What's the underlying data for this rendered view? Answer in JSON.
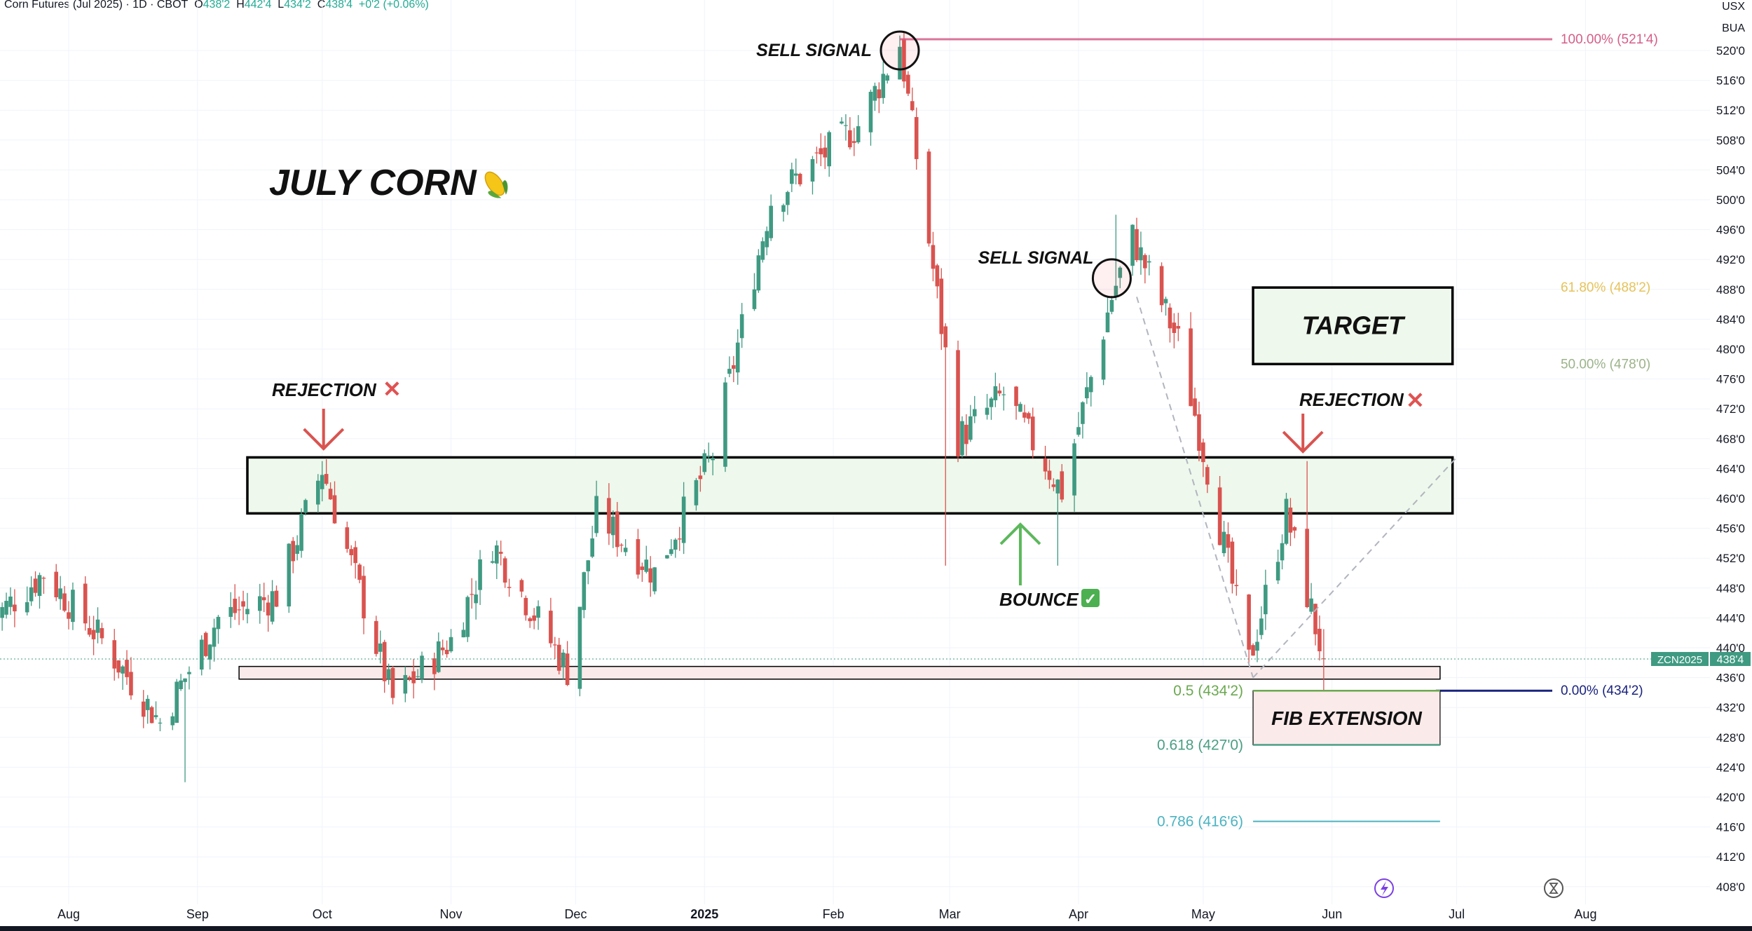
{
  "header": {
    "symbol": "Corn Futures (Jul 2025) · 1D · CBOT",
    "open_label": "O",
    "open": "438'2",
    "high_label": "H",
    "high": "442'4",
    "low_label": "L",
    "low": "434'2",
    "close_label": "C",
    "close": "438'4",
    "change": "+0'2 (+0.06%)"
  },
  "currency_labels": [
    "USX",
    "BUA"
  ],
  "price_tag": {
    "symbol": "ZCN2025",
    "price": "438'4",
    "value": 438.5
  },
  "colors": {
    "up": "#3f9a82",
    "down": "#d9534f",
    "box_fill": "#eef8ec",
    "pink_fill": "#fbeaea",
    "fib_100": "#d45e88",
    "fib_618": "#e6c35a",
    "fib_50": "#9cb38a",
    "fib_0": "#1a237e",
    "fib_ext_0786": "#4bb3c2",
    "fib_ext_05": "#6aa84f",
    "fib_ext_0618": "#4a9e84"
  },
  "chart_data": {
    "type": "candlestick",
    "x_axis_labels": [
      {
        "label": "Aug",
        "date": "2024-08-01"
      },
      {
        "label": "Sep",
        "date": "2024-09-01"
      },
      {
        "label": "Oct",
        "date": "2024-10-01"
      },
      {
        "label": "Nov",
        "date": "2024-11-01"
      },
      {
        "label": "Dec",
        "date": "2024-12-01"
      },
      {
        "label": "2025",
        "date": "2025-01-01"
      },
      {
        "label": "Feb",
        "date": "2025-02-01"
      },
      {
        "label": "Mar",
        "date": "2025-03-01"
      },
      {
        "label": "Apr",
        "date": "2025-04-01"
      },
      {
        "label": "May",
        "date": "2025-05-01"
      },
      {
        "label": "Jun",
        "date": "2025-06-01"
      },
      {
        "label": "Jul",
        "date": "2025-07-01"
      },
      {
        "label": "Aug",
        "date": "2025-08-01"
      }
    ],
    "y_axis_labels": [
      "520'0",
      "516'0",
      "512'0",
      "508'0",
      "504'0",
      "500'0",
      "496'0",
      "492'0",
      "488'0",
      "484'0",
      "480'0",
      "476'0",
      "472'0",
      "468'0",
      "464'0",
      "460'0",
      "456'0",
      "452'0",
      "448'0",
      "444'0",
      "440'0",
      "436'0",
      "432'0",
      "428'0",
      "424'0",
      "420'0",
      "416'0",
      "412'0",
      "408'0"
    ],
    "y_axis_values": [
      520,
      516,
      512,
      508,
      504,
      500,
      496,
      492,
      488,
      484,
      480,
      476,
      472,
      468,
      464,
      460,
      456,
      452,
      448,
      444,
      440,
      436,
      432,
      428,
      424,
      420,
      416,
      412,
      408
    ],
    "ylim": [
      406.8,
      526.6
    ],
    "closes": [
      {
        "date": "2024-07-12",
        "close": 443
      },
      {
        "date": "2024-07-26",
        "close": 450
      },
      {
        "date": "2024-08-09",
        "close": 441
      },
      {
        "date": "2024-08-23",
        "close": 430
      },
      {
        "date": "2024-09-06",
        "close": 444
      },
      {
        "date": "2024-09-20",
        "close": 447
      },
      {
        "date": "2024-10-01",
        "close": 464
      },
      {
        "date": "2024-10-18",
        "close": 433
      },
      {
        "date": "2024-11-01",
        "close": 441
      },
      {
        "date": "2024-11-11",
        "close": 454
      },
      {
        "date": "2024-11-29",
        "close": 437
      },
      {
        "date": "2024-12-06",
        "close": 458
      },
      {
        "date": "2024-12-20",
        "close": 450
      },
      {
        "date": "2025-01-03",
        "close": 466
      },
      {
        "date": "2025-01-17",
        "close": 500
      },
      {
        "date": "2025-02-07",
        "close": 510
      },
      {
        "date": "2025-02-17",
        "close": 521
      },
      {
        "date": "2025-03-03",
        "close": 468
      },
      {
        "date": "2025-03-14",
        "close": 474
      },
      {
        "date": "2025-03-28",
        "close": 461
      },
      {
        "date": "2025-04-09",
        "close": 487
      },
      {
        "date": "2025-04-14",
        "close": 495
      },
      {
        "date": "2025-04-25",
        "close": 481
      },
      {
        "date": "2025-05-02",
        "close": 464
      },
      {
        "date": "2025-05-12",
        "close": 438
      },
      {
        "date": "2025-05-21",
        "close": 458
      },
      {
        "date": "2025-05-30",
        "close": 438.5
      }
    ],
    "lows": [
      {
        "date": "2024-08-29",
        "low": 422
      },
      {
        "date": "2024-10-19",
        "low": 428
      },
      {
        "date": "2025-02-28",
        "low": 451
      },
      {
        "date": "2025-03-27",
        "low": 451
      },
      {
        "date": "2025-05-11",
        "low": 436
      },
      {
        "date": "2025-05-30",
        "low": 434.25
      }
    ],
    "highs": [
      {
        "date": "2024-10-01",
        "high": 465
      },
      {
        "date": "2025-02-17",
        "high": 522
      },
      {
        "date": "2025-04-10",
        "high": 498
      },
      {
        "date": "2025-05-26",
        "high": 465
      }
    ]
  },
  "fib_retracement": [
    {
      "level": "100.00% (521'4)",
      "value": 521.5
    },
    {
      "level": "61.80% (488'2)",
      "value": 488.25
    },
    {
      "level": "50.00% (478'0)",
      "value": 478
    },
    {
      "level": "0.00% (434'2)",
      "value": 434.25
    }
  ],
  "fib_extension": [
    {
      "level": "0.5 (434'2)",
      "value": 434.25
    },
    {
      "level": "0.618 (427'0)",
      "value": 427
    },
    {
      "level": "0.786 (416'6)",
      "value": 416.75
    }
  ],
  "zones": {
    "resistance": {
      "top": 465.5,
      "bottom": 458,
      "from": "2024-09-13",
      "to": "2025-06-30"
    },
    "support": {
      "top": 437.5,
      "bottom": 435.8,
      "from": "2024-09-11",
      "to": "2025-06-27"
    },
    "target": {
      "top": 488.25,
      "bottom": 478,
      "from": "2025-05-13",
      "to": "2025-06-30"
    },
    "fib_ext_box": {
      "top": 434.25,
      "bottom": 427,
      "from": "2025-05-13",
      "to": "2025-06-27"
    }
  },
  "annotations": {
    "title": "JULY CORN",
    "title_emoji": "🌽",
    "sell_signal_1": "SELL SIGNAL",
    "sell_signal_2": "SELL SIGNAL",
    "rejection_1": "REJECTION",
    "rejection_2": "REJECTION",
    "rejection_mark": "✕",
    "bounce": "BOUNCE",
    "bounce_mark": "✓",
    "target": "TARGET",
    "fib_extension": "FIB EXTENSION"
  }
}
